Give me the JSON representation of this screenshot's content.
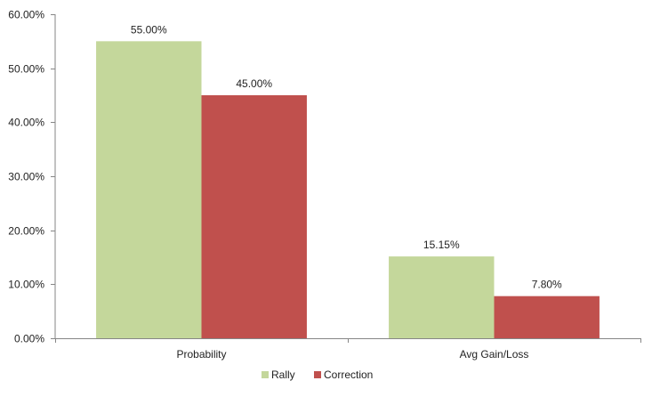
{
  "chart_data": {
    "type": "bar",
    "categories": [
      "Probability",
      "Avg Gain/Loss"
    ],
    "series": [
      {
        "name": "Rally",
        "values": [
          55.0,
          15.15
        ],
        "labels": [
          "55.00%",
          "15.15%"
        ],
        "color": "#c4d79b"
      },
      {
        "name": "Correction",
        "values": [
          45.0,
          7.8
        ],
        "labels": [
          "45.00%",
          "7.80%"
        ],
        "color": "#c0504d"
      }
    ],
    "title": "",
    "xlabel": "",
    "ylabel": "",
    "ylim": [
      0,
      60
    ],
    "yticks": [
      {
        "value": 0,
        "label": "0.00%"
      },
      {
        "value": 10,
        "label": "10.00%"
      },
      {
        "value": 20,
        "label": "20.00%"
      },
      {
        "value": 30,
        "label": "30.00%"
      },
      {
        "value": 40,
        "label": "40.00%"
      },
      {
        "value": 50,
        "label": "50.00%"
      },
      {
        "value": 60,
        "label": "60.00%"
      }
    ],
    "grid": false,
    "legend_position": "bottom",
    "axis_color": "#868686"
  }
}
